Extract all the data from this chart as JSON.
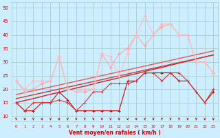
{
  "x": [
    0,
    1,
    2,
    3,
    4,
    5,
    6,
    7,
    8,
    9,
    10,
    11,
    12,
    13,
    14,
    15,
    16,
    17,
    18,
    19,
    20,
    21,
    22,
    23
  ],
  "lines": [
    {
      "y": [
        15,
        12,
        12,
        15,
        15,
        19,
        16,
        12,
        12,
        12,
        12,
        12,
        12,
        23,
        23,
        26,
        26,
        26,
        26,
        23,
        23,
        19,
        15,
        19
      ],
      "color": "#cc0000",
      "lw": 0.8,
      "marker": "+",
      "ms": 3
    },
    {
      "y": [
        15,
        12,
        15,
        15,
        15,
        16,
        15,
        12,
        15,
        19,
        19,
        22,
        22,
        22,
        23,
        26,
        26,
        23,
        26,
        26,
        23,
        19,
        15,
        20
      ],
      "color": "#dd3333",
      "lw": 0.8,
      "marker": "+",
      "ms": 3
    },
    {
      "y": [
        15.0,
        15.8,
        16.5,
        17.3,
        18.1,
        18.8,
        19.6,
        20.4,
        21.1,
        21.9,
        22.7,
        23.4,
        24.2,
        25.0,
        25.7,
        26.5,
        27.3,
        28.0,
        28.8,
        29.6,
        30.3,
        31.1,
        31.9,
        32.6
      ],
      "color": "#cc2222",
      "lw": 1.0,
      "marker": null,
      "ms": 0
    },
    {
      "y": [
        16.5,
        17.2,
        17.9,
        18.6,
        19.3,
        20.0,
        20.7,
        21.4,
        22.1,
        22.8,
        23.5,
        24.2,
        24.9,
        25.6,
        26.3,
        27.0,
        27.7,
        28.4,
        29.1,
        29.8,
        30.5,
        31.2,
        31.9,
        32.6
      ],
      "color": "#dd3333",
      "lw": 1.0,
      "marker": null,
      "ms": 0
    },
    {
      "y": [
        18.0,
        18.7,
        19.4,
        20.1,
        20.8,
        21.5,
        22.2,
        22.9,
        23.6,
        24.3,
        25.0,
        25.7,
        26.4,
        27.1,
        27.8,
        28.5,
        29.2,
        29.9,
        30.6,
        31.3,
        32.0,
        32.7,
        33.4,
        34.1
      ],
      "color": "#ee5555",
      "lw": 1.0,
      "marker": null,
      "ms": 0
    },
    {
      "y": [
        23,
        19,
        20,
        22,
        23,
        32,
        20,
        19,
        19,
        20,
        33,
        28,
        33,
        35,
        40,
        36,
        40,
        43,
        44,
        40,
        40,
        30,
        30,
        26
      ],
      "color": "#ffaaaa",
      "lw": 0.8,
      "marker": "D",
      "ms": 2
    },
    {
      "y": [
        23,
        20,
        23,
        23,
        23,
        32,
        20,
        19,
        20,
        20,
        33,
        32,
        25,
        33,
        40,
        47,
        40,
        44,
        44,
        40,
        40,
        30,
        30,
        26
      ],
      "color": "#ffbbbb",
      "lw": 0.8,
      "marker": "D",
      "ms": 2
    }
  ],
  "xlim": [
    -0.5,
    23.5
  ],
  "ylim": [
    8,
    52
  ],
  "yticks": [
    10,
    15,
    20,
    25,
    30,
    35,
    40,
    45,
    50
  ],
  "xtick_labels": [
    "0",
    "1",
    "2",
    "3",
    "4",
    "5",
    "6",
    "7",
    "8",
    "9",
    "10",
    "11",
    "12",
    "13",
    "14",
    "15",
    "16",
    "17",
    "18",
    "19",
    "20",
    "21",
    "22",
    "23"
  ],
  "xlabel": "Vent moyen/en rafales ( km/h )",
  "bg_color": "#cceeff",
  "grid_color": "#aacccc",
  "text_color": "#cc0000"
}
